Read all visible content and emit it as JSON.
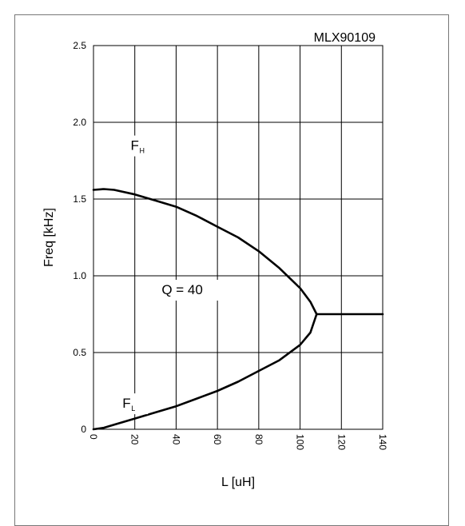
{
  "chart_data": {
    "type": "line",
    "title": "MLX90109",
    "xlabel": "L [uH]",
    "ylabel": "Freq [kHz]",
    "xlim": [
      0,
      140
    ],
    "ylim": [
      0,
      2.5
    ],
    "x_ticks": [
      "0",
      "20",
      "40",
      "60",
      "80",
      "100",
      "120",
      "140"
    ],
    "y_ticks": [
      "0",
      "0.5",
      "1.0",
      "1.5",
      "2.0",
      "2.5"
    ],
    "grid": true,
    "annotations": [
      {
        "text": "F",
        "sub": "H",
        "x": 18,
        "y": 1.82
      },
      {
        "text": "Q = 40",
        "x": 33,
        "y": 0.88
      },
      {
        "text": "F",
        "sub": "L",
        "x": 14,
        "y": 0.14
      }
    ],
    "series": [
      {
        "label": "FH",
        "x": [
          0,
          5,
          10,
          20,
          30,
          40,
          50,
          60,
          70,
          80,
          90,
          100,
          105,
          108
        ],
        "y": [
          1.56,
          1.565,
          1.56,
          1.53,
          1.49,
          1.45,
          1.39,
          1.32,
          1.25,
          1.16,
          1.05,
          0.92,
          0.83,
          0.75
        ]
      },
      {
        "label": "FL",
        "x": [
          0,
          5,
          10,
          20,
          30,
          40,
          50,
          60,
          70,
          80,
          90,
          100,
          105,
          108
        ],
        "y": [
          0.0,
          0.01,
          0.03,
          0.07,
          0.11,
          0.15,
          0.2,
          0.25,
          0.31,
          0.38,
          0.45,
          0.55,
          0.63,
          0.75
        ]
      },
      {
        "label": "F",
        "x": [
          108,
          120,
          130,
          140
        ],
        "y": [
          0.75,
          0.75,
          0.75,
          0.75
        ]
      }
    ]
  }
}
